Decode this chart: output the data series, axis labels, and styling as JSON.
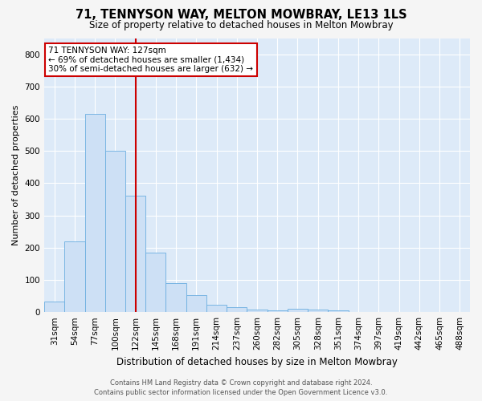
{
  "title": "71, TENNYSON WAY, MELTON MOWBRAY, LE13 1LS",
  "subtitle": "Size of property relative to detached houses in Melton Mowbray",
  "xlabel": "Distribution of detached houses by size in Melton Mowbray",
  "ylabel": "Number of detached properties",
  "bar_values": [
    32,
    220,
    615,
    500,
    360,
    185,
    90,
    52,
    22,
    16,
    8,
    5,
    10,
    8,
    5,
    0,
    0,
    0,
    0,
    0,
    0
  ],
  "bar_labels": [
    "31sqm",
    "54sqm",
    "77sqm",
    "100sqm",
    "122sqm",
    "145sqm",
    "168sqm",
    "191sqm",
    "214sqm",
    "237sqm",
    "260sqm",
    "282sqm",
    "305sqm",
    "328sqm",
    "351sqm",
    "374sqm",
    "397sqm",
    "419sqm",
    "442sqm",
    "465sqm",
    "488sqm"
  ],
  "bar_color": "#cde0f5",
  "bar_edge_color": "#6aaee0",
  "property_line_x": 4.0,
  "property_line_color": "#cc0000",
  "annotation_line1": "71 TENNYSON WAY: 127sqm",
  "annotation_line2": "← 69% of detached houses are smaller (1,434)",
  "annotation_line3": "30% of semi-detached houses are larger (632) →",
  "annotation_box_facecolor": "#ffffff",
  "annotation_box_edgecolor": "#cc0000",
  "ylim": [
    0,
    850
  ],
  "yticks": [
    0,
    100,
    200,
    300,
    400,
    500,
    600,
    700,
    800
  ],
  "grid_color": "#ffffff",
  "axes_facecolor": "#ddeaf8",
  "fig_facecolor": "#f5f5f5",
  "title_fontsize": 10.5,
  "subtitle_fontsize": 8.5,
  "xlabel_fontsize": 8.5,
  "ylabel_fontsize": 8.0,
  "tick_fontsize": 7.5,
  "annotation_fontsize": 7.5,
  "footer_fontsize": 6.0,
  "footer_color": "#555555",
  "footer_line1": "Contains HM Land Registry data © Crown copyright and database right 2024.",
  "footer_line2": "Contains public sector information licensed under the Open Government Licence v3.0."
}
